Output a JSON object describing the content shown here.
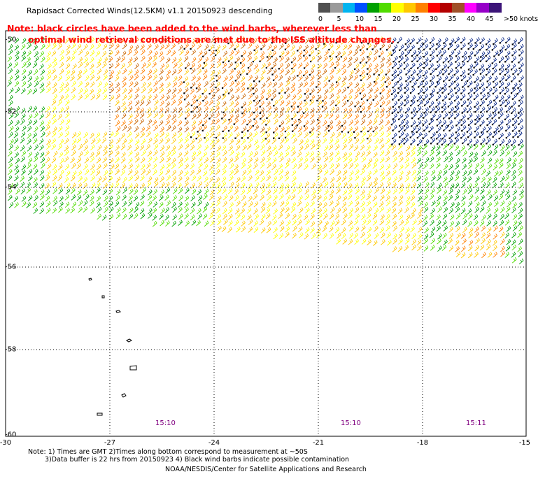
{
  "title": "Rapidsact Corrected Winds(12.5KM) v1.1 20150923 descending",
  "note": {
    "line1": "Note: black circles have been added to the wind barbs, wherever less than",
    "line2": "optimal wind retrieval conditions are met due to the ISS altitude changes."
  },
  "legend": {
    "labels": [
      "0",
      "5",
      "10",
      "15",
      "20",
      "25",
      "30",
      "35",
      "40",
      "45",
      ">50 knots"
    ],
    "colors": [
      "#505050",
      "#9a9a9a",
      "#00b4f0",
      "#0050ff",
      "#00a000",
      "#50dc00",
      "#ffff00",
      "#ffc800",
      "#ff8000",
      "#ff0000",
      "#b40000",
      "#a05028",
      "#ff00ff",
      "#9600c8",
      "#3c1478"
    ]
  },
  "map": {
    "x_ticks": [
      "-30",
      "-27",
      "-24",
      "-21",
      "-18",
      "-15"
    ],
    "y_ticks": [
      "-50",
      "-52",
      "-54",
      "-56",
      "-58",
      "-60"
    ],
    "time_labels": [
      "15:10",
      "15:10",
      "15:11"
    ]
  },
  "footnote": {
    "line1": "Note: 1) Times are GMT 2)Times along bottom correspond to measurement at ~50S",
    "line2": "3)Data buffer is 22 hrs from 20150923 4) Black wind barbs indicate possible contamination"
  },
  "credit": "NOAA/NESDIS/Center for Satellite Applications and Research"
}
